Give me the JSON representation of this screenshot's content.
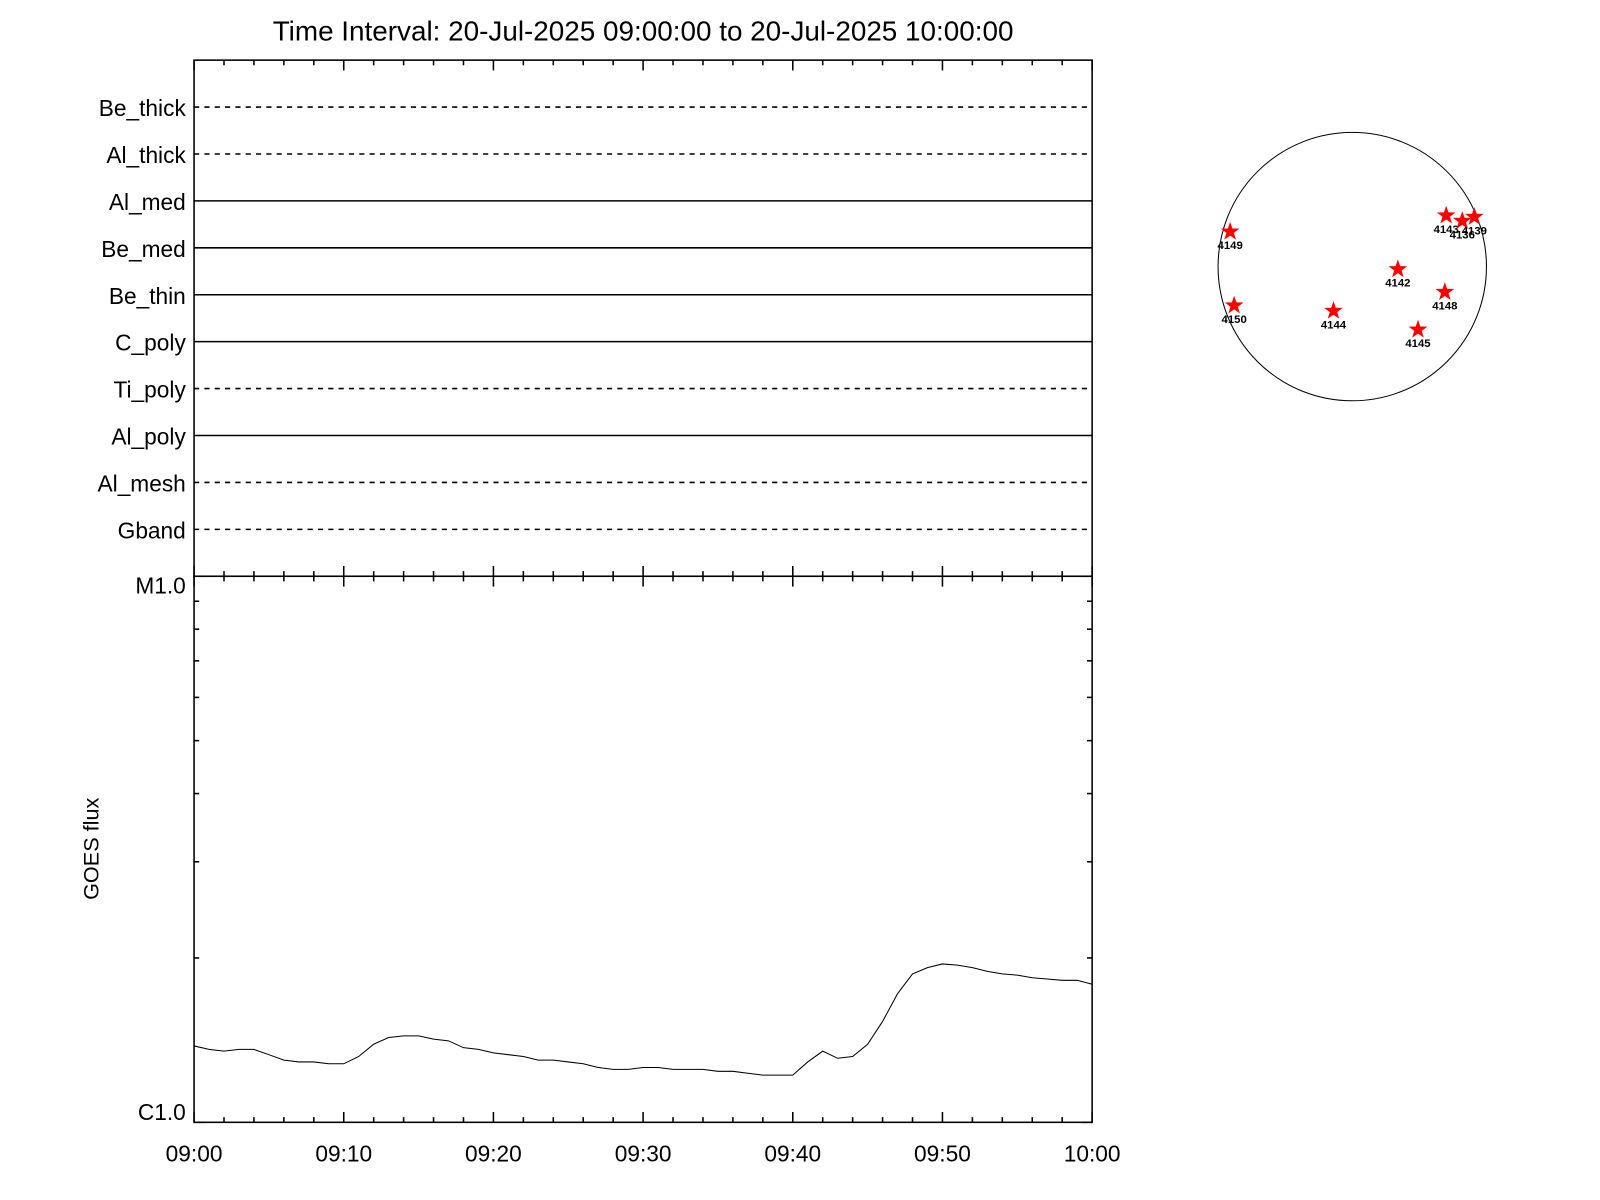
{
  "chart_data": [
    {
      "type": "state",
      "title": "Time Interval: 20-Jul-2025 09:00:00 to 20-Jul-2025 10:00:00",
      "rows": [
        {
          "name": "Be_thick",
          "style": "dashed"
        },
        {
          "name": "Al_thick",
          "style": "dashed"
        },
        {
          "name": "Al_med",
          "style": "solid"
        },
        {
          "name": "Be_med",
          "style": "solid"
        },
        {
          "name": "Be_thin",
          "style": "solid"
        },
        {
          "name": "C_poly",
          "style": "solid"
        },
        {
          "name": "Ti_poly",
          "style": "dashed"
        },
        {
          "name": "Al_poly",
          "style": "solid"
        },
        {
          "name": "Al_mesh",
          "style": "dashed"
        },
        {
          "name": "Gband",
          "style": "dashed"
        }
      ]
    },
    {
      "type": "line",
      "ylabel": "GOES flux",
      "log_y": true,
      "color": "#000000",
      "x": [
        "09:00",
        "09:01",
        "09:02",
        "09:03",
        "09:04",
        "09:05",
        "09:06",
        "09:07",
        "09:08",
        "09:09",
        "09:10",
        "09:11",
        "09:12",
        "09:13",
        "09:14",
        "09:15",
        "09:16",
        "09:17",
        "09:18",
        "09:19",
        "09:20",
        "09:21",
        "09:22",
        "09:23",
        "09:24",
        "09:25",
        "09:26",
        "09:27",
        "09:28",
        "09:29",
        "09:30",
        "09:31",
        "09:32",
        "09:33",
        "09:34",
        "09:35",
        "09:36",
        "09:37",
        "09:38",
        "09:39",
        "09:40",
        "09:41",
        "09:42",
        "09:43",
        "09:44",
        "09:45",
        "09:46",
        "09:47",
        "09:48",
        "09:49",
        "09:50",
        "09:51",
        "09:52",
        "09:53",
        "09:54",
        "09:55",
        "09:56",
        "09:57",
        "09:58",
        "09:59",
        "10:00"
      ],
      "values": [
        1.38e-06,
        1.36e-06,
        1.35e-06,
        1.36e-06,
        1.36e-06,
        1.33e-06,
        1.3e-06,
        1.29e-06,
        1.29e-06,
        1.28e-06,
        1.28e-06,
        1.32e-06,
        1.39e-06,
        1.43e-06,
        1.44e-06,
        1.44e-06,
        1.42e-06,
        1.41e-06,
        1.37e-06,
        1.36e-06,
        1.34e-06,
        1.33e-06,
        1.32e-06,
        1.3e-06,
        1.3e-06,
        1.29e-06,
        1.28e-06,
        1.26e-06,
        1.25e-06,
        1.25e-06,
        1.26e-06,
        1.26e-06,
        1.25e-06,
        1.25e-06,
        1.25e-06,
        1.24e-06,
        1.24e-06,
        1.23e-06,
        1.22e-06,
        1.22e-06,
        1.22e-06,
        1.29e-06,
        1.35e-06,
        1.31e-06,
        1.32e-06,
        1.39e-06,
        1.53e-06,
        1.72e-06,
        1.87e-06,
        1.92e-06,
        1.95e-06,
        1.94e-06,
        1.92e-06,
        1.89e-06,
        1.87e-06,
        1.86e-06,
        1.84e-06,
        1.83e-06,
        1.82e-06,
        1.82e-06,
        1.79e-06
      ],
      "xlim": [
        "09:00",
        "10:00"
      ],
      "xticks": [
        "09:00",
        "09:10",
        "09:20",
        "09:30",
        "09:40",
        "09:50",
        "10:00"
      ],
      "minor_xticks": [
        "09:02",
        "09:04",
        "09:06",
        "09:08",
        "09:12",
        "09:14",
        "09:16",
        "09:18",
        "09:22",
        "09:24",
        "09:26",
        "09:28",
        "09:32",
        "09:34",
        "09:36",
        "09:38",
        "09:42",
        "09:44",
        "09:46",
        "09:48",
        "09:52",
        "09:54",
        "09:56",
        "09:58"
      ],
      "ylim": [
        1e-06,
        1e-05
      ],
      "yticks": [
        {
          "value": 1e-06,
          "label": "C1.0"
        },
        {
          "value": 1e-05,
          "label": "M1.0"
        }
      ],
      "minor_yticks": [
        2e-06,
        3e-06,
        4e-06,
        5e-06,
        6e-06,
        7e-06,
        8e-06,
        9e-06
      ]
    },
    {
      "type": "disk",
      "color": "#ff0000",
      "regions": [
        {
          "label": "4149",
          "x": -0.91,
          "y": 0.26
        },
        {
          "label": "4150",
          "x": -0.88,
          "y": -0.29
        },
        {
          "label": "4144",
          "x": -0.14,
          "y": -0.33
        },
        {
          "label": "4142",
          "x": 0.34,
          "y": -0.02
        },
        {
          "label": "4148",
          "x": 0.69,
          "y": -0.19
        },
        {
          "label": "4145",
          "x": 0.49,
          "y": -0.47
        },
        {
          "label": "4143",
          "x": 0.7,
          "y": 0.38
        },
        {
          "label": "4136",
          "x": 0.82,
          "y": 0.34
        },
        {
          "label": "4139",
          "x": 0.91,
          "y": 0.37
        }
      ]
    }
  ]
}
